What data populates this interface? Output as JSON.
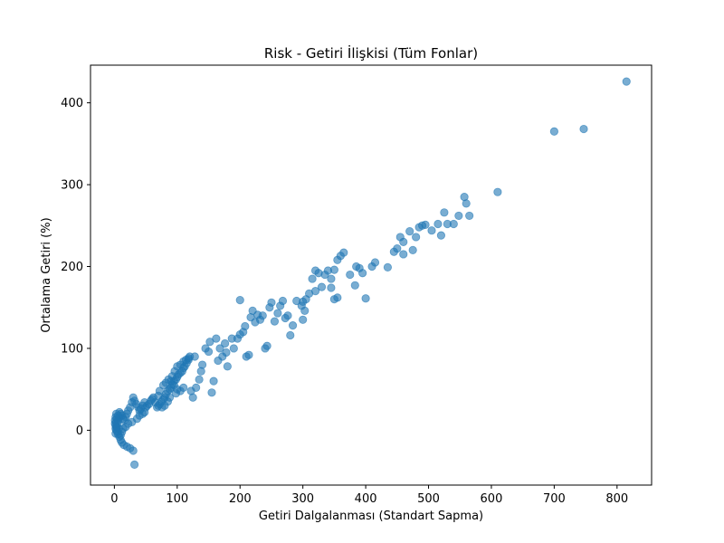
{
  "chart_data": {
    "type": "scatter",
    "title": "Risk - Getiri İlişkisi (Tüm Fonlar)",
    "xlabel": "Getiri Dalgalanması (Standart Sapma)",
    "ylabel": "Ortalama Getiri (%)",
    "xlim": [
      -38,
      855
    ],
    "ylim": [
      -67,
      446
    ],
    "xticks": [
      0,
      100,
      200,
      300,
      400,
      500,
      600,
      700,
      800
    ],
    "yticks": [
      0,
      100,
      200,
      300,
      400
    ],
    "grid": false,
    "color": "#1f77b4",
    "alpha": 0.6,
    "points": [
      [
        815,
        426
      ],
      [
        747,
        368
      ],
      [
        700,
        365
      ],
      [
        610,
        291
      ],
      [
        557,
        285
      ],
      [
        560,
        277
      ],
      [
        565,
        262
      ],
      [
        525,
        266
      ],
      [
        548,
        262
      ],
      [
        540,
        252
      ],
      [
        530,
        252
      ],
      [
        515,
        252
      ],
      [
        505,
        244
      ],
      [
        520,
        238
      ],
      [
        495,
        251
      ],
      [
        490,
        250
      ],
      [
        485,
        248
      ],
      [
        480,
        236
      ],
      [
        470,
        243
      ],
      [
        460,
        230
      ],
      [
        455,
        236
      ],
      [
        450,
        222
      ],
      [
        445,
        218
      ],
      [
        460,
        215
      ],
      [
        475,
        220
      ],
      [
        435,
        199
      ],
      [
        415,
        205
      ],
      [
        410,
        200
      ],
      [
        390,
        198
      ],
      [
        385,
        200
      ],
      [
        395,
        192
      ],
      [
        400,
        161
      ],
      [
        383,
        177
      ],
      [
        375,
        190
      ],
      [
        365,
        217
      ],
      [
        360,
        213
      ],
      [
        355,
        208
      ],
      [
        350,
        196
      ],
      [
        345,
        185
      ],
      [
        340,
        195
      ],
      [
        350,
        160
      ],
      [
        355,
        162
      ],
      [
        345,
        174
      ],
      [
        330,
        175
      ],
      [
        335,
        190
      ],
      [
        325,
        192
      ],
      [
        320,
        195
      ],
      [
        320,
        170
      ],
      [
        315,
        185
      ],
      [
        310,
        167
      ],
      [
        305,
        160
      ],
      [
        300,
        157
      ],
      [
        303,
        146
      ],
      [
        300,
        135
      ],
      [
        298,
        152
      ],
      [
        290,
        158
      ],
      [
        284,
        128
      ],
      [
        280,
        116
      ],
      [
        276,
        140
      ],
      [
        272,
        137
      ],
      [
        268,
        158
      ],
      [
        264,
        152
      ],
      [
        260,
        143
      ],
      [
        255,
        133
      ],
      [
        250,
        156
      ],
      [
        247,
        150
      ],
      [
        243,
        103
      ],
      [
        240,
        100
      ],
      [
        236,
        140
      ],
      [
        232,
        135
      ],
      [
        228,
        141
      ],
      [
        224,
        132
      ],
      [
        220,
        146
      ],
      [
        217,
        138
      ],
      [
        214,
        92
      ],
      [
        210,
        90
      ],
      [
        208,
        127
      ],
      [
        205,
        120
      ],
      [
        200,
        117
      ],
      [
        200,
        159
      ],
      [
        196,
        112
      ],
      [
        190,
        100
      ],
      [
        187,
        112
      ],
      [
        180,
        78
      ],
      [
        178,
        95
      ],
      [
        176,
        106
      ],
      [
        172,
        90
      ],
      [
        168,
        100
      ],
      [
        165,
        85
      ],
      [
        162,
        112
      ],
      [
        158,
        60
      ],
      [
        155,
        46
      ],
      [
        152,
        108
      ],
      [
        150,
        96
      ],
      [
        145,
        100
      ],
      [
        140,
        80
      ],
      [
        138,
        72
      ],
      [
        135,
        62
      ],
      [
        130,
        52
      ],
      [
        128,
        90
      ],
      [
        125,
        40
      ],
      [
        122,
        48
      ],
      [
        120,
        90
      ],
      [
        118,
        86
      ],
      [
        115,
        82
      ],
      [
        112,
        78
      ],
      [
        110,
        76
      ],
      [
        108,
        72
      ],
      [
        105,
        70
      ],
      [
        102,
        68
      ],
      [
        100,
        65
      ],
      [
        98,
        62
      ],
      [
        95,
        60
      ],
      [
        92,
        56
      ],
      [
        90,
        52
      ],
      [
        88,
        50
      ],
      [
        85,
        48
      ],
      [
        82,
        44
      ],
      [
        80,
        40
      ],
      [
        78,
        38
      ],
      [
        75,
        35
      ],
      [
        72,
        32
      ],
      [
        70,
        30
      ],
      [
        68,
        28
      ],
      [
        65,
        34
      ],
      [
        62,
        40
      ],
      [
        60,
        38
      ],
      [
        58,
        36
      ],
      [
        55,
        32
      ],
      [
        52,
        30
      ],
      [
        50,
        28
      ],
      [
        48,
        34
      ],
      [
        45,
        30
      ],
      [
        42,
        26
      ],
      [
        40,
        24
      ],
      [
        38,
        28
      ],
      [
        35,
        32
      ],
      [
        32,
        36
      ],
      [
        30,
        40
      ],
      [
        28,
        34
      ],
      [
        25,
        28
      ],
      [
        22,
        24
      ],
      [
        20,
        20
      ],
      [
        18,
        16
      ],
      [
        16,
        12
      ],
      [
        14,
        14
      ],
      [
        12,
        18
      ],
      [
        10,
        20
      ],
      [
        8,
        16
      ],
      [
        6,
        12
      ],
      [
        5,
        8
      ],
      [
        4,
        4
      ],
      [
        3,
        0
      ],
      [
        2,
        -4
      ],
      [
        2,
        6
      ],
      [
        3,
        10
      ],
      [
        4,
        14
      ],
      [
        6,
        18
      ],
      [
        8,
        22
      ],
      [
        90,
        60
      ],
      [
        95,
        55
      ],
      [
        100,
        50
      ],
      [
        105,
        48
      ],
      [
        110,
        52
      ],
      [
        98,
        45
      ],
      [
        88,
        40
      ],
      [
        85,
        35
      ],
      [
        80,
        30
      ],
      [
        76,
        28
      ],
      [
        70,
        42
      ],
      [
        72,
        48
      ],
      [
        78,
        55
      ],
      [
        82,
        58
      ],
      [
        86,
        62
      ],
      [
        92,
        66
      ],
      [
        96,
        72
      ],
      [
        100,
        78
      ],
      [
        105,
        80
      ],
      [
        110,
        84
      ],
      [
        114,
        86
      ],
      [
        118,
        88
      ],
      [
        6,
        -5
      ],
      [
        8,
        -8
      ],
      [
        10,
        -12
      ],
      [
        12,
        -15
      ],
      [
        15,
        -18
      ],
      [
        20,
        -20
      ],
      [
        25,
        -22
      ],
      [
        30,
        -25
      ],
      [
        32,
        -42
      ],
      [
        40,
        18
      ],
      [
        45,
        20
      ],
      [
        48,
        22
      ],
      [
        36,
        14
      ],
      [
        28,
        10
      ],
      [
        22,
        8
      ],
      [
        18,
        4
      ],
      [
        14,
        2
      ],
      [
        12,
        -2
      ],
      [
        10,
        -6
      ],
      [
        7,
        2
      ],
      [
        5,
        -2
      ],
      [
        3,
        4
      ],
      [
        2,
        2
      ],
      [
        1,
        8
      ],
      [
        1,
        12
      ],
      [
        2,
        16
      ],
      [
        3,
        20
      ]
    ]
  }
}
